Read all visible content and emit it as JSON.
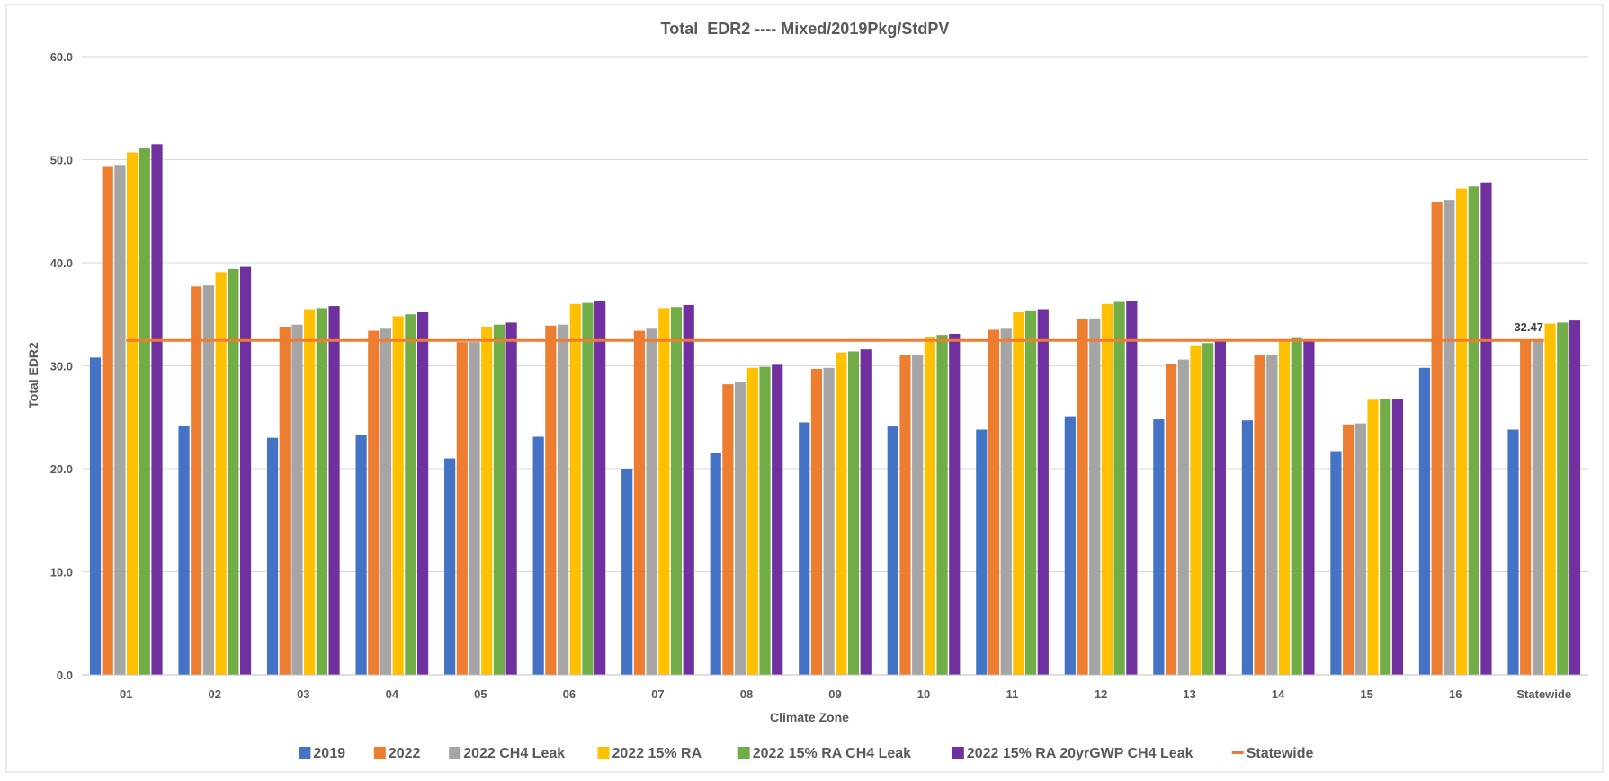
{
  "chart_data": {
    "type": "bar",
    "title": "Total  EDR2 ---- Mixed/2019Pkg/StdPV",
    "xlabel": "Climate Zone",
    "ylabel": "Total EDR2",
    "ylim": [
      0,
      60
    ],
    "yticks": [
      "0.0",
      "10.0",
      "20.0",
      "30.0",
      "40.0",
      "50.0",
      "60.0"
    ],
    "grid": true,
    "legend_position": "bottom",
    "categories": [
      "01",
      "02",
      "03",
      "04",
      "05",
      "06",
      "07",
      "08",
      "09",
      "10",
      "11",
      "12",
      "13",
      "14",
      "15",
      "16",
      "Statewide"
    ],
    "series": [
      {
        "name": "2019",
        "color": "#4472C4",
        "values": [
          30.8,
          24.2,
          23.0,
          23.3,
          21.0,
          23.1,
          20.0,
          21.5,
          24.5,
          24.1,
          23.8,
          25.1,
          24.8,
          24.7,
          21.7,
          29.8,
          23.8
        ]
      },
      {
        "name": "2022",
        "color": "#ED7D31",
        "values": [
          49.3,
          37.7,
          33.8,
          33.4,
          32.3,
          33.9,
          33.4,
          28.2,
          29.7,
          31.0,
          33.5,
          34.5,
          30.2,
          31.0,
          24.3,
          45.9,
          32.5
        ]
      },
      {
        "name": "2022 CH4 Leak",
        "color": "#A5A5A5",
        "values": [
          49.5,
          37.8,
          34.0,
          33.6,
          32.3,
          34.0,
          33.6,
          28.4,
          29.8,
          31.1,
          33.6,
          34.6,
          30.6,
          31.1,
          24.4,
          46.1,
          32.6
        ]
      },
      {
        "name": "2022  15% RA",
        "color": "#FFC000",
        "values": [
          50.7,
          39.1,
          35.5,
          34.8,
          33.8,
          36.0,
          35.6,
          29.8,
          31.3,
          32.8,
          35.2,
          36.0,
          32.0,
          32.6,
          26.7,
          47.2,
          34.1
        ]
      },
      {
        "name": "2022  15% RA CH4 Leak",
        "color": "#70AD47",
        "values": [
          51.1,
          39.4,
          35.6,
          35.0,
          34.0,
          36.1,
          35.7,
          29.9,
          31.4,
          33.0,
          35.3,
          36.2,
          32.2,
          32.7,
          26.8,
          47.4,
          34.2
        ]
      },
      {
        "name": "2022  15% RA 20yrGWP CH4 Leak",
        "color": "#7030A0",
        "values": [
          51.5,
          39.6,
          35.8,
          35.2,
          34.2,
          36.3,
          35.9,
          30.1,
          31.6,
          33.1,
          35.5,
          36.3,
          32.4,
          32.4,
          26.8,
          47.8,
          34.4
        ]
      }
    ],
    "reference_line": {
      "name": "Statewide",
      "value": 32.47,
      "label": "32.47",
      "color": "#ED7D31"
    }
  }
}
